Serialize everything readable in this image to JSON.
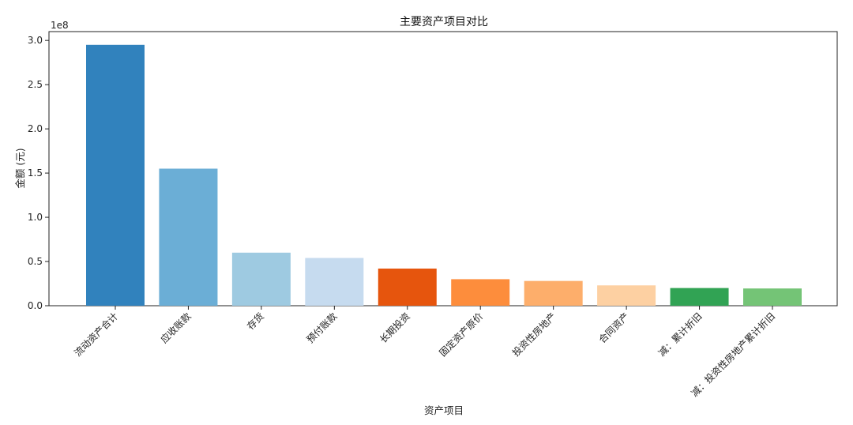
{
  "chart_data": {
    "type": "bar",
    "title": "主要资产项目对比",
    "xlabel": "资产项目",
    "ylabel": "金额 (元)",
    "scale_label": "1e8",
    "ylim": [
      0,
      3.1
    ],
    "y_ticks": [
      "0.0",
      "0.5",
      "1.0",
      "1.5",
      "2.0",
      "2.5",
      "3.0"
    ],
    "categories": [
      "流动资产合计",
      "应收账款",
      "存货",
      "预付账款",
      "长期投资",
      "固定资产原价",
      "投资性房地产",
      "合同资产",
      "减：累计折旧",
      "减：投资性房地产累计折旧"
    ],
    "values": [
      2.95,
      1.55,
      0.6,
      0.54,
      0.42,
      0.3,
      0.28,
      0.23,
      0.2,
      0.195
    ],
    "colors": [
      "#3182bd",
      "#6baed6",
      "#9ecae1",
      "#c6dbef",
      "#e6550d",
      "#fd8d3c",
      "#fdae6b",
      "#fdd0a2",
      "#31a354",
      "#74c476"
    ],
    "grid": false,
    "legend": "none"
  }
}
